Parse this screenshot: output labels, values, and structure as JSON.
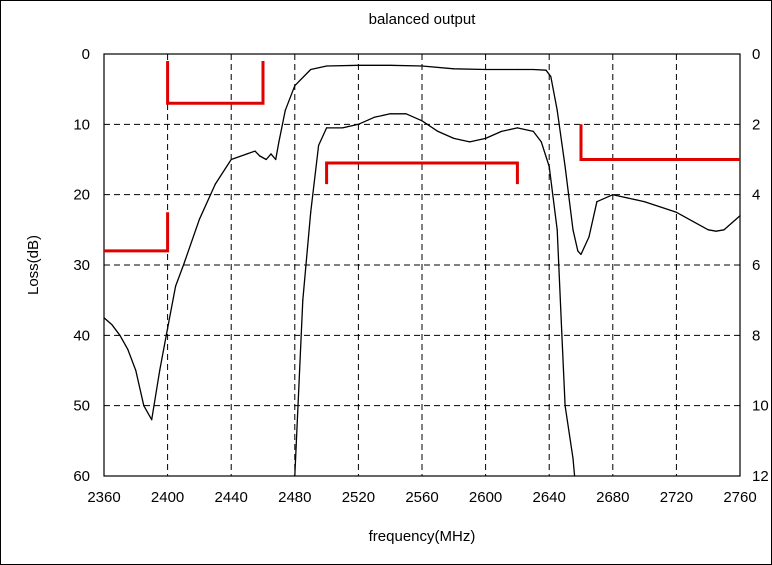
{
  "chart_data": {
    "type": "line",
    "title": "balanced output",
    "xlabel": "frequency(MHz)",
    "ylabel": "Loss(dB)",
    "xlim": [
      2360,
      2760
    ],
    "ylim": [
      0,
      60
    ],
    "ylim_right": [
      0,
      12
    ],
    "y_inverted": true,
    "grid": true,
    "x_ticks": [
      "2360",
      "2400",
      "2440",
      "2480",
      "2520",
      "2560",
      "2600",
      "2640",
      "2680",
      "2720",
      "2760"
    ],
    "y_ticks": [
      "0",
      "10",
      "20",
      "30",
      "40",
      "50",
      "60"
    ],
    "y_ticks_right": [
      "0",
      "2",
      "4",
      "6",
      "8",
      "10",
      "12"
    ],
    "series": [
      {
        "axis": "left",
        "color": "#000000",
        "x": [
          2360,
          2365,
          2370,
          2375,
          2380,
          2385,
          2390,
          2395,
          2400,
          2405,
          2410,
          2420,
          2430,
          2440,
          2450,
          2455,
          2458,
          2462,
          2465,
          2468,
          2470,
          2474,
          2480,
          2490,
          2500,
          2520,
          2540,
          2560,
          2580,
          2600,
          2620,
          2630,
          2638,
          2641,
          2645,
          2650,
          2655,
          2658,
          2660,
          2665,
          2670,
          2680,
          2700,
          2720,
          2740,
          2745,
          2750,
          2760
        ],
        "y": [
          37.5,
          38.5,
          40,
          42,
          45,
          50,
          52,
          45,
          39,
          33,
          30,
          23.5,
          18.5,
          15,
          14.2,
          13.8,
          14.5,
          15,
          14.2,
          15,
          12.5,
          8,
          4.5,
          2.2,
          1.7,
          1.6,
          1.6,
          1.7,
          2.1,
          2.2,
          2.2,
          2.2,
          2.3,
          3.2,
          8,
          16,
          25,
          28,
          28.5,
          26,
          21,
          20,
          21,
          22.5,
          25,
          25.2,
          25,
          23
        ]
      },
      {
        "axis": "right",
        "color": "#000000",
        "x": [
          2480,
          2482,
          2485,
          2490,
          2495,
          2500,
          2510,
          2520,
          2530,
          2540,
          2550,
          2560,
          2570,
          2580,
          2590,
          2600,
          2610,
          2620,
          2630,
          2635,
          2640,
          2645,
          2648,
          2650,
          2655,
          2656
        ],
        "y": [
          12,
          10,
          7,
          4.5,
          2.6,
          2.1,
          2.1,
          2.0,
          1.8,
          1.7,
          1.7,
          1.9,
          2.2,
          2.4,
          2.5,
          2.4,
          2.2,
          2.1,
          2.2,
          2.5,
          3.2,
          5,
          8,
          10,
          11.5,
          12
        ]
      }
    ],
    "spec_masks": [
      {
        "color": "#e00000",
        "points": [
          [
            2360,
            28
          ],
          [
            2400,
            28
          ],
          [
            2400,
            22.5
          ]
        ]
      },
      {
        "color": "#e00000",
        "points": [
          [
            2400,
            1
          ],
          [
            2400,
            7
          ],
          [
            2460,
            7
          ],
          [
            2460,
            1
          ]
        ]
      },
      {
        "color": "#e00000",
        "points": [
          [
            2500,
            18.5
          ],
          [
            2500,
            15.5
          ],
          [
            2620,
            15.5
          ],
          [
            2620,
            18.5
          ]
        ]
      },
      {
        "color": "#e00000",
        "points": [
          [
            2660,
            10
          ],
          [
            2660,
            15
          ],
          [
            2760,
            15
          ]
        ]
      }
    ]
  }
}
